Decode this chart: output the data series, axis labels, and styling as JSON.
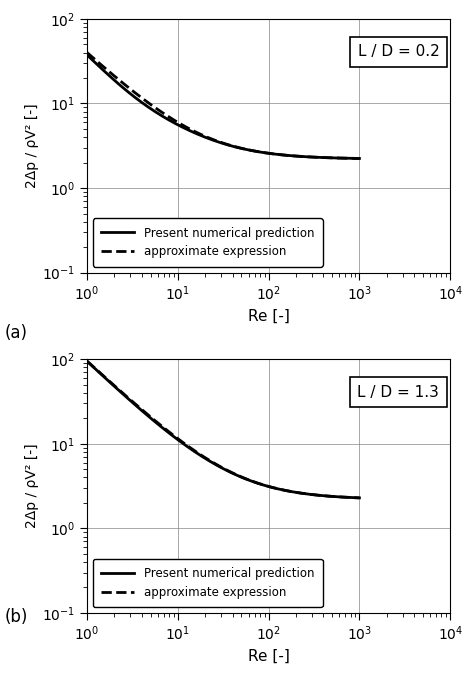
{
  "LD_a": 0.2,
  "LD_b": 1.3,
  "Re_min": 1,
  "Re_max": 10000,
  "y_min": 0.1,
  "y_max": 100,
  "xlabel": "Re [-]",
  "ylabel": "2Δp / ρV² [-]",
  "legend_approx": "approximate expression",
  "legend_numerical": "Present numerical prediction",
  "label_a": "(a)",
  "label_b": "(b)",
  "approx_a_at_Re1": 40.0,
  "approx_b_at_Re1": 95.0,
  "num_a_at_Re1": 38.0,
  "num_b_at_Re1": 95.0,
  "plateau": 2.2
}
